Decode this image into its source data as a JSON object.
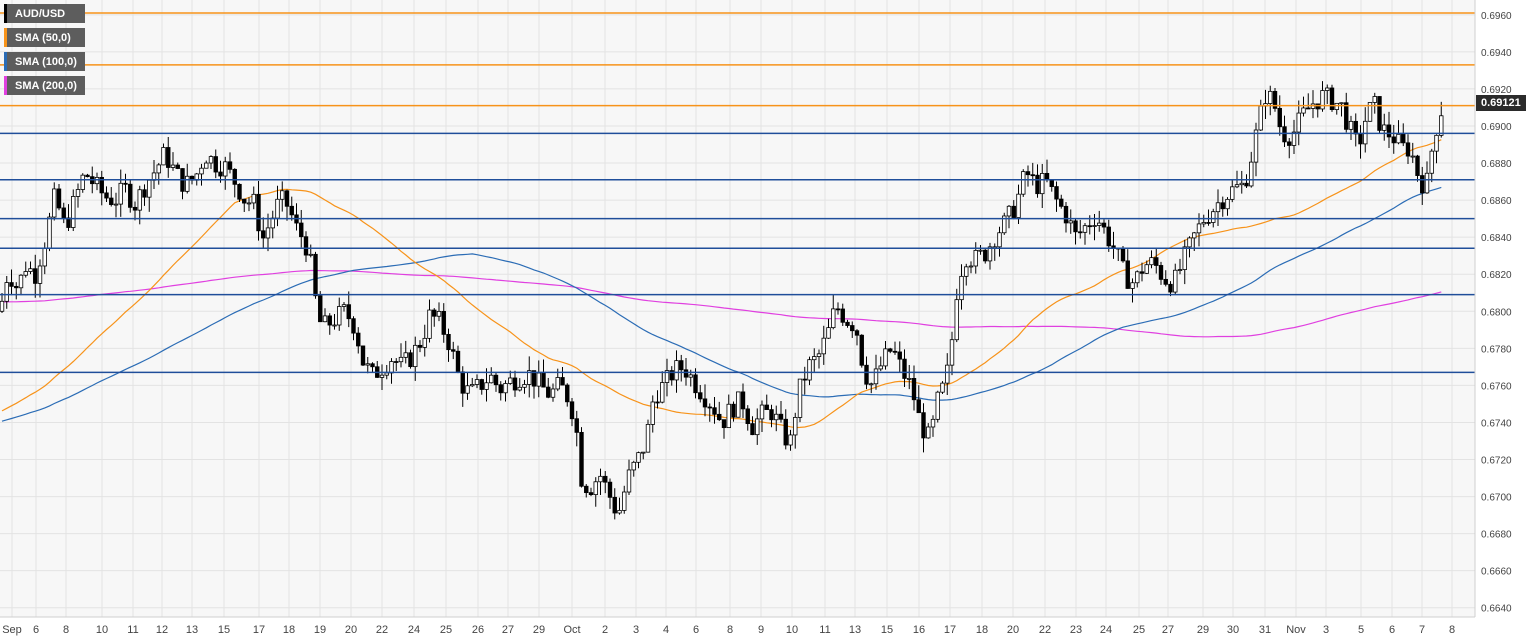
{
  "chart_data": {
    "type": "candlestick",
    "symbol": "AUD/USD",
    "legend": [
      {
        "name": "AUD/USD",
        "color": "#000000"
      },
      {
        "name": "SMA (50,0)",
        "color": "#f7931a"
      },
      {
        "name": "SMA (100,0)",
        "color": "#2b6cb5"
      },
      {
        "name": "SMA (200,0)",
        "color": "#e040e0"
      }
    ],
    "current_price": "0.69121",
    "ylim": [
      0.6635,
      0.6968
    ],
    "y_ticks": [
      "0.6640",
      "0.6660",
      "0.6680",
      "0.6700",
      "0.6720",
      "0.6740",
      "0.6760",
      "0.6780",
      "0.6800",
      "0.6820",
      "0.6840",
      "0.6860",
      "0.6880",
      "0.6900",
      "0.6920",
      "0.6940",
      "0.6960"
    ],
    "x_labels": [
      "Sep",
      "6",
      "8",
      "10",
      "11",
      "12",
      "13",
      "15",
      "17",
      "18",
      "19",
      "20",
      "22",
      "24",
      "25",
      "26",
      "27",
      "29",
      "Oct",
      "2",
      "3",
      "4",
      "6",
      "8",
      "9",
      "10",
      "11",
      "13",
      "15",
      "16",
      "17",
      "18",
      "20",
      "22",
      "23",
      "24",
      "25",
      "27",
      "29",
      "30",
      "31",
      "Nov",
      "3",
      "5",
      "6",
      "7",
      "8"
    ],
    "resistance_levels": [
      0.6961,
      0.6933,
      0.6911
    ],
    "support_levels": [
      0.6896,
      0.6871,
      0.685,
      0.6834,
      0.6809,
      0.6767
    ],
    "colors": {
      "bull": "#ffffff",
      "bear": "#000000",
      "resistance": "#f7931a",
      "support": "#1f4e9a",
      "grid": "#e3e3e3",
      "background": "#f7f7f7"
    },
    "price_path": [
      [
        0,
        0.68
      ],
      [
        8,
        0.6822
      ],
      [
        18,
        0.6812
      ],
      [
        25,
        0.6825
      ],
      [
        35,
        0.682
      ],
      [
        45,
        0.6838
      ],
      [
        55,
        0.6862
      ],
      [
        65,
        0.6845
      ],
      [
        75,
        0.686
      ],
      [
        85,
        0.6875
      ],
      [
        95,
        0.6868
      ],
      [
        105,
        0.6862
      ],
      [
        115,
        0.686
      ],
      [
        125,
        0.6866
      ],
      [
        135,
        0.6858
      ],
      [
        145,
        0.6868
      ],
      [
        155,
        0.6876
      ],
      [
        165,
        0.6885
      ],
      [
        175,
        0.6875
      ],
      [
        185,
        0.6868
      ],
      [
        195,
        0.6872
      ],
      [
        205,
        0.6885
      ],
      [
        215,
        0.688
      ],
      [
        225,
        0.6878
      ],
      [
        235,
        0.687
      ],
      [
        245,
        0.686
      ],
      [
        255,
        0.6858
      ],
      [
        262,
        0.6838
      ],
      [
        270,
        0.6848
      ],
      [
        280,
        0.686
      ],
      [
        288,
        0.6857
      ],
      [
        296,
        0.6845
      ],
      [
        305,
        0.6838
      ],
      [
        312,
        0.6822
      ],
      [
        318,
        0.6795
      ],
      [
        325,
        0.6792
      ],
      [
        335,
        0.6796
      ],
      [
        345,
        0.68
      ],
      [
        355,
        0.6792
      ],
      [
        363,
        0.6773
      ],
      [
        372,
        0.6765
      ],
      [
        382,
        0.677
      ],
      [
        392,
        0.6775
      ],
      [
        402,
        0.677
      ],
      [
        412,
        0.6776
      ],
      [
        422,
        0.6785
      ],
      [
        430,
        0.6798
      ],
      [
        440,
        0.6794
      ],
      [
        450,
        0.6782
      ],
      [
        460,
        0.6762
      ],
      [
        470,
        0.6755
      ],
      [
        480,
        0.676
      ],
      [
        490,
        0.6765
      ],
      [
        500,
        0.6758
      ],
      [
        510,
        0.6762
      ],
      [
        520,
        0.6765
      ],
      [
        530,
        0.6766
      ],
      [
        540,
        0.676
      ],
      [
        550,
        0.6755
      ],
      [
        560,
        0.676
      ],
      [
        570,
        0.6752
      ],
      [
        576,
        0.6738
      ],
      [
        582,
        0.6708
      ],
      [
        590,
        0.6705
      ],
      [
        600,
        0.6712
      ],
      [
        610,
        0.67
      ],
      [
        618,
        0.669
      ],
      [
        628,
        0.671
      ],
      [
        638,
        0.672
      ],
      [
        646,
        0.673
      ],
      [
        654,
        0.6755
      ],
      [
        664,
        0.676
      ],
      [
        674,
        0.6768
      ],
      [
        684,
        0.677
      ],
      [
        694,
        0.6762
      ],
      [
        704,
        0.6755
      ],
      [
        714,
        0.6748
      ],
      [
        722,
        0.674
      ],
      [
        732,
        0.6748
      ],
      [
        742,
        0.6752
      ],
      [
        752,
        0.6738
      ],
      [
        762,
        0.6744
      ],
      [
        772,
        0.6746
      ],
      [
        782,
        0.6735
      ],
      [
        790,
        0.6728
      ],
      [
        798,
        0.6755
      ],
      [
        808,
        0.677
      ],
      [
        818,
        0.6775
      ],
      [
        828,
        0.6788
      ],
      [
        836,
        0.6803
      ],
      [
        846,
        0.6796
      ],
      [
        856,
        0.6792
      ],
      [
        864,
        0.6768
      ],
      [
        872,
        0.676
      ],
      [
        882,
        0.6772
      ],
      [
        892,
        0.678
      ],
      [
        902,
        0.6768
      ],
      [
        912,
        0.6758
      ],
      [
        920,
        0.674
      ],
      [
        930,
        0.673
      ],
      [
        938,
        0.6752
      ],
      [
        946,
        0.6762
      ],
      [
        952,
        0.6785
      ],
      [
        958,
        0.6818
      ],
      [
        966,
        0.683
      ],
      [
        976,
        0.6828
      ],
      [
        986,
        0.6832
      ],
      [
        996,
        0.6842
      ],
      [
        1006,
        0.6848
      ],
      [
        1016,
        0.6858
      ],
      [
        1026,
        0.6875
      ],
      [
        1036,
        0.6868
      ],
      [
        1046,
        0.687
      ],
      [
        1056,
        0.686
      ],
      [
        1066,
        0.6852
      ],
      [
        1076,
        0.684
      ],
      [
        1086,
        0.6846
      ],
      [
        1096,
        0.6852
      ],
      [
        1106,
        0.6842
      ],
      [
        1116,
        0.6832
      ],
      [
        1124,
        0.682
      ],
      [
        1134,
        0.6815
      ],
      [
        1144,
        0.6825
      ],
      [
        1154,
        0.6826
      ],
      [
        1164,
        0.6818
      ],
      [
        1174,
        0.6815
      ],
      [
        1184,
        0.6828
      ],
      [
        1194,
        0.684
      ],
      [
        1204,
        0.685
      ],
      [
        1214,
        0.6856
      ],
      [
        1224,
        0.6862
      ],
      [
        1234,
        0.6866
      ],
      [
        1244,
        0.6868
      ],
      [
        1252,
        0.6885
      ],
      [
        1258,
        0.69
      ],
      [
        1266,
        0.6918
      ],
      [
        1274,
        0.6912
      ],
      [
        1282,
        0.6896
      ],
      [
        1292,
        0.6895
      ],
      [
        1302,
        0.6905
      ],
      [
        1312,
        0.6912
      ],
      [
        1322,
        0.6916
      ],
      [
        1332,
        0.6914
      ],
      [
        1342,
        0.691
      ],
      [
        1350,
        0.6898
      ],
      [
        1358,
        0.6888
      ],
      [
        1366,
        0.6905
      ],
      [
        1374,
        0.6912
      ],
      [
        1382,
        0.6898
      ],
      [
        1392,
        0.6895
      ],
      [
        1402,
        0.6888
      ],
      [
        1410,
        0.6888
      ],
      [
        1418,
        0.6874
      ],
      [
        1426,
        0.6866
      ],
      [
        1434,
        0.6895
      ],
      [
        1442,
        0.691
      ]
    ]
  }
}
